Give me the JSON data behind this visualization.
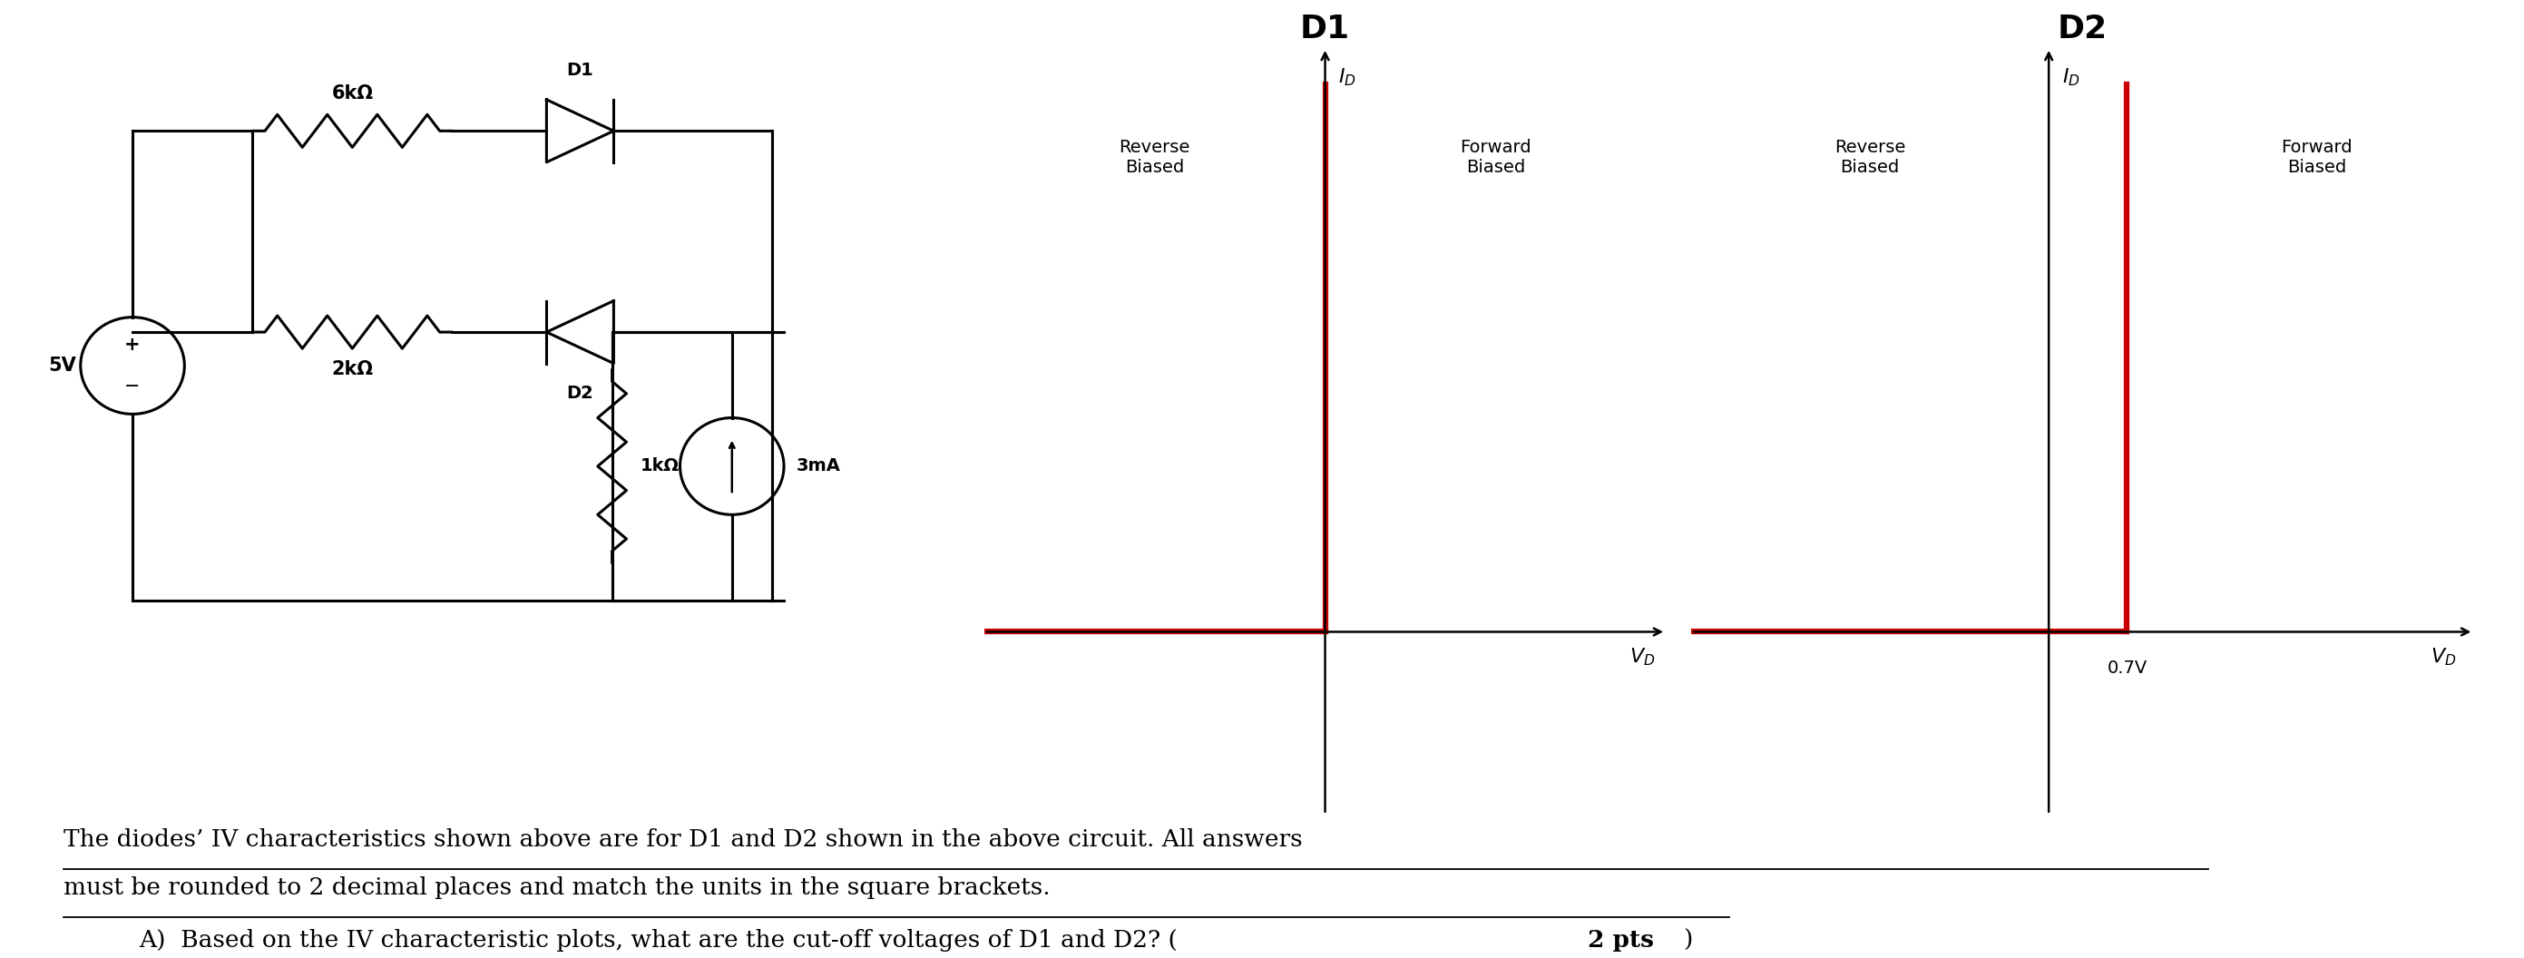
{
  "bg_color": "#ffffff",
  "black": "#000000",
  "red": "#cc0000",
  "circuit": {
    "resistor_top": "6kΩ",
    "resistor_bot": "2kΩ",
    "resistor_right": "1kΩ",
    "current_source": "3mA",
    "voltage_source": "5V",
    "diode_top": "D1",
    "diode_bot": "D2"
  },
  "d1": {
    "title": "D1",
    "reverse": "Reverse\nBiased",
    "forward": "Forward\nBiased",
    "ylabel": "I",
    "xlabel": "V",
    "cutoff": 0
  },
  "d2": {
    "title": "D2",
    "reverse": "Reverse\nBiased",
    "forward": "Forward\nBiased",
    "ylabel": "I",
    "xlabel": "V",
    "cutoff": 0.7,
    "cutoff_label": "0.7V"
  },
  "text1": "The diodes’ IV characteristics shown above are for D1 and D2 shown in the above circuit. All answers",
  "text2": "must be rounded to 2 decimal places and match the units in the square brackets.",
  "text3": "A)  Based on the IV characteristic plots, what are the cut-off voltages of D1 and D2? (",
  "text3_bold": "2 pts",
  "text3_end": ")"
}
